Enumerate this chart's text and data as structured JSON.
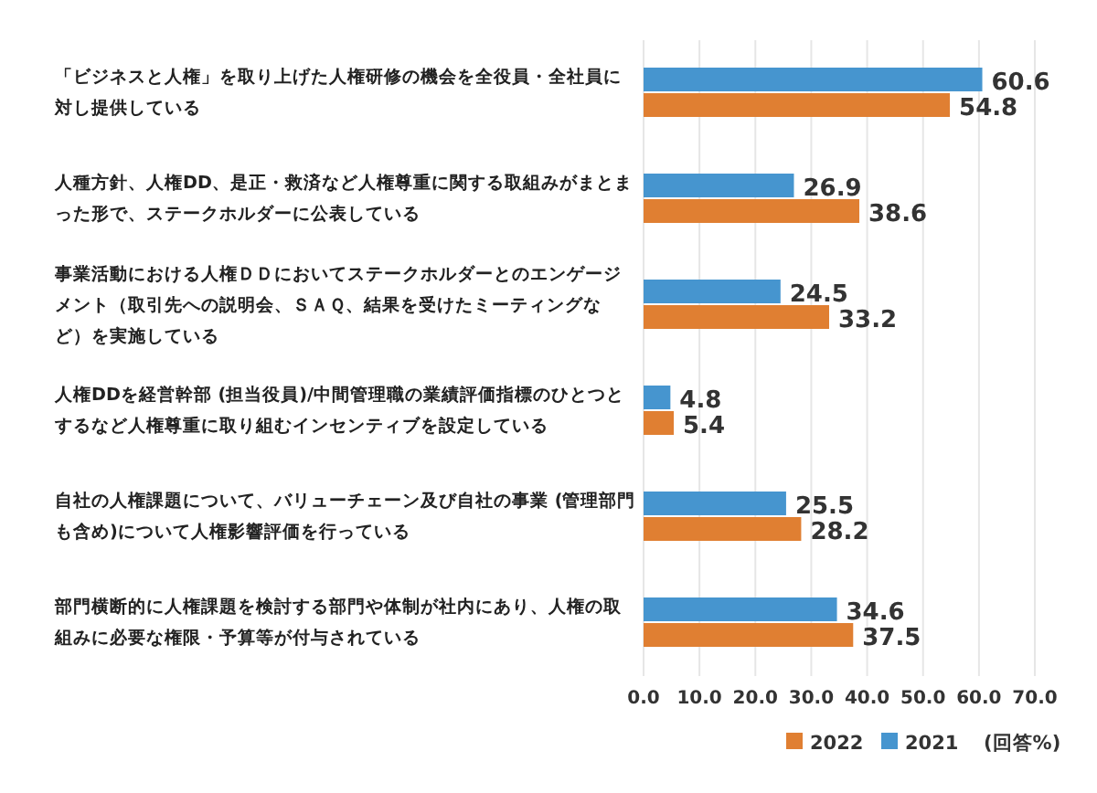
{
  "chart_data": {
    "type": "bar",
    "orientation": "horizontal",
    "categories": [
      "「ビジネスと人権」を取り上げた人権研修の機会を全役員・全社員に対し提供している",
      "人種方針、人権DD、是正・救済など人権尊重に関する取組みがまとまった形で、ステークホルダーに公表している",
      "事業活動における人権ＤＤにおいてステークホルダーとのエンゲージメント（取引先への説明会、ＳＡＱ、結果を受けたミーティングなど）を実施している",
      "人権DDを経営幹部 (担当役員)/中間管理職の業績評価指標のひとつとするなど人権尊重に取り組むインセンティブを設定している",
      "自社の人権課題について、バリューチェーン及び自社の事業 (管理部門も含め)について人権影響評価を行っている",
      "部門横断的に人権課題を検討する部門や体制が社内にあり、人権の取組みに必要な権限・予算等が付与されている"
    ],
    "series": [
      {
        "name": "2022",
        "color": "#e07f32",
        "values": [
          54.8,
          38.6,
          33.2,
          5.4,
          28.2,
          37.5
        ]
      },
      {
        "name": "2021",
        "color": "#4695cf",
        "values": [
          60.6,
          26.9,
          24.5,
          4.8,
          25.5,
          34.6
        ]
      }
    ],
    "xlim": [
      0,
      70
    ],
    "xticks": [
      "0.0",
      "10.0",
      "20.0",
      "30.0",
      "40.0",
      "50.0",
      "60.0",
      "70.0"
    ],
    "grid": "x",
    "data_labels": true,
    "legend": "bottom right",
    "annotations": [
      "(回答%)"
    ]
  }
}
